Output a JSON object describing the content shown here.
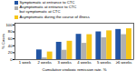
{
  "chart_data": {
    "type": "bar",
    "categories": [
      "1 week",
      "2 weeks",
      "3 weeks",
      "4 weeks",
      "5 weeks",
      "≥6 weeks"
    ],
    "series": [
      {
        "name": "Symptomatic at entrance to CTC",
        "color": "#2255a4",
        "values": [
          0,
          28,
          50,
          73,
          80,
          87
        ]
      },
      {
        "name": "Asymptomatic at entrance to CTC\nbut symptomatic at CTC",
        "color": "#b0b0b0",
        "values": [
          0,
          5,
          27,
          47,
          63,
          72
        ]
      },
      {
        "name": "Asymptomatic during the course of illness",
        "color": "#f5c518",
        "values": [
          0,
          22,
          53,
          72,
          83,
          89
        ]
      }
    ],
    "xlabel": "Cumulative virologic remission rate, %",
    "ylabel": "% Cases",
    "ylim": [
      0,
      105
    ],
    "yticks": [
      0,
      20,
      40,
      60,
      80,
      100
    ]
  }
}
